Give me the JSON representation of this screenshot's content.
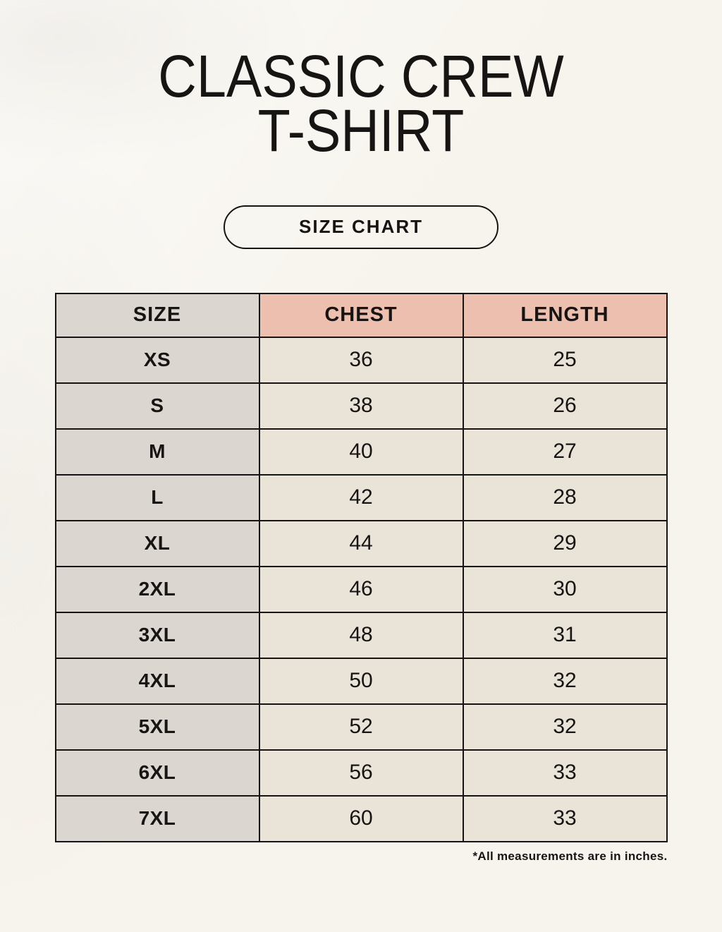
{
  "header": {
    "title_line1": "CLASSIC CREW",
    "title_line2": "T-SHIRT",
    "button_label": "SIZE CHART"
  },
  "chart_data": {
    "type": "table",
    "title": "CLASSIC CREW T-SHIRT",
    "subtitle": "SIZE CHART",
    "columns": [
      "SIZE",
      "CHEST",
      "LENGTH"
    ],
    "rows": [
      [
        "XS",
        "36",
        "25"
      ],
      [
        "S",
        "38",
        "26"
      ],
      [
        "M",
        "40",
        "27"
      ],
      [
        "L",
        "42",
        "28"
      ],
      [
        "XL",
        "44",
        "29"
      ],
      [
        "2XL",
        "46",
        "30"
      ],
      [
        "3XL",
        "48",
        "31"
      ],
      [
        "4XL",
        "50",
        "32"
      ],
      [
        "5XL",
        "52",
        "32"
      ],
      [
        "6XL",
        "56",
        "33"
      ],
      [
        "7XL",
        "60",
        "33"
      ]
    ],
    "units_note": "*All measurements are in inches."
  },
  "footer": {
    "note": "*All measurements are in inches."
  },
  "colors": {
    "background": "#f7f4ed",
    "header_pink": "#edbfae",
    "size_col_gray": "#dcd6d0",
    "cell_cream": "#eae3d8",
    "border": "#161514",
    "text": "#161514"
  }
}
